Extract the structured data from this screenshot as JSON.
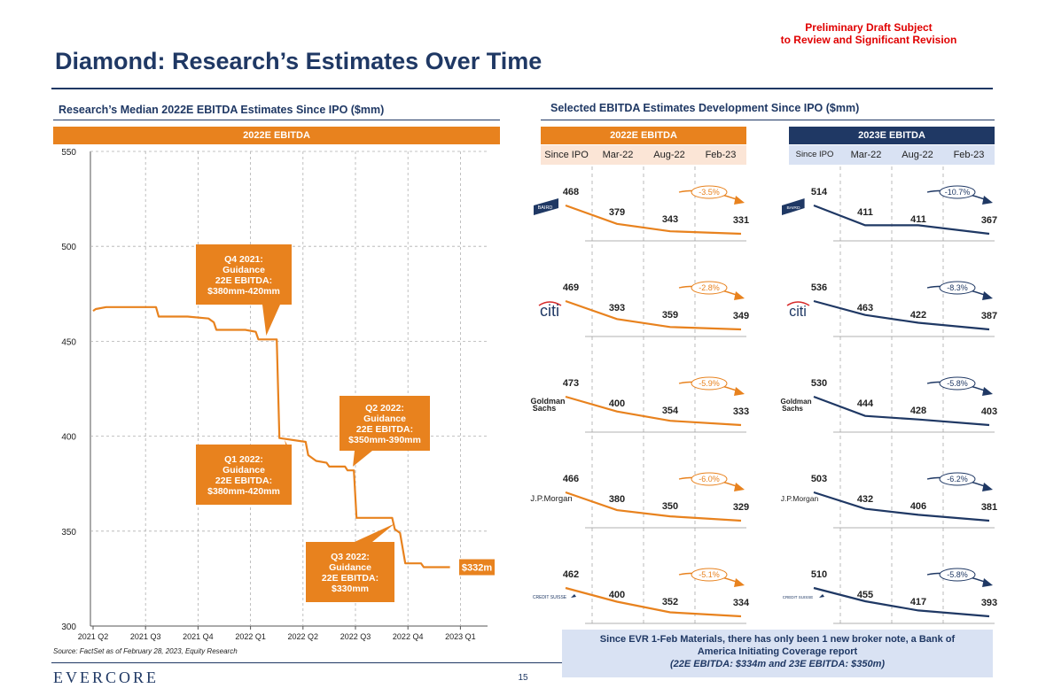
{
  "header": {
    "draft_line1": "Preliminary Draft Subject",
    "draft_line2": "to Review and Significant Revision",
    "title": "Diamond: Research’s Estimates Over Time"
  },
  "left_section": {
    "title": "Research’s Median 2022E EBITDA Estimates Since IPO ($mm)",
    "band": "2022E EBITDA"
  },
  "right_section": {
    "title": "Selected EBITDA Estimates Development Since IPO ($mm)",
    "band_2022": "2022E EBITDA",
    "band_2023": "2023E EBITDA",
    "columns_2022": [
      "Since IPO",
      "Mar-22",
      "Aug-22",
      "Feb-23"
    ],
    "columns_2023": [
      "Since IPO",
      "Mar-22",
      "Aug-22",
      "Feb-23"
    ]
  },
  "colors": {
    "orange": "#e8821e",
    "navy": "#1f3864",
    "light_orange": "#fbe5d6",
    "light_blue": "#d9e2f3"
  },
  "chart_data": [
    {
      "type": "line",
      "title": "2022E EBITDA",
      "x_ticks": [
        "2021 Q2",
        "2021 Q3",
        "2021 Q4",
        "2022 Q1",
        "2022 Q2",
        "2022 Q3",
        "2022 Q4",
        "2023 Q1"
      ],
      "ylim": [
        300,
        550
      ],
      "y_ticks": [
        "300",
        "350",
        "400",
        "450",
        "500",
        "550"
      ],
      "grid": true,
      "series": [
        {
          "name": "Median 2022E EBITDA",
          "points": [
            [
              0,
              466
            ],
            [
              0.05,
              467
            ],
            [
              0.25,
              468
            ],
            [
              1.2,
              468
            ],
            [
              1.25,
              463
            ],
            [
              1.8,
              463
            ],
            [
              2.2,
              462
            ],
            [
              2.3,
              460
            ],
            [
              2.35,
              456
            ],
            [
              2.9,
              456
            ],
            [
              3.1,
              455
            ],
            [
              3.15,
              451
            ],
            [
              3.5,
              451
            ],
            [
              3.55,
              399
            ],
            [
              4.05,
              397
            ],
            [
              4.1,
              390
            ],
            [
              4.25,
              387
            ],
            [
              4.45,
              386
            ],
            [
              4.5,
              384
            ],
            [
              4.8,
              384
            ],
            [
              4.85,
              382
            ],
            [
              4.97,
              382
            ],
            [
              5.02,
              357
            ],
            [
              5.7,
              357
            ],
            [
              5.75,
              351
            ],
            [
              5.85,
              349
            ],
            [
              5.95,
              333
            ],
            [
              6.25,
              333
            ],
            [
              6.3,
              331
            ],
            [
              6.8,
              331
            ]
          ]
        }
      ],
      "end_label": "$332m",
      "annotations": [
        {
          "id": "q4-2021",
          "lines": [
            "Q4 2021:",
            "Guidance",
            "22E EBITDA:",
            "$380mm-420mm"
          ]
        },
        {
          "id": "q1-2022",
          "lines": [
            "Q1 2022:",
            "Guidance",
            "22E EBITDA:",
            "$380mm-420mm"
          ]
        },
        {
          "id": "q2-2022",
          "lines": [
            "Q2 2022:",
            "Guidance",
            "22E EBITDA:",
            "$350mm-390mm"
          ]
        },
        {
          "id": "q3-2022",
          "lines": [
            "Q3 2022:",
            "Guidance",
            "22E EBITDA:",
            "$330mm"
          ]
        }
      ]
    },
    {
      "type": "line",
      "title": "Selected EBITDA Estimates Development Since IPO",
      "categories": [
        "Since IPO",
        "Mar-22",
        "Aug-22",
        "Feb-23"
      ],
      "brokers": [
        {
          "name": "BAIRD",
          "values_2022": [
            468,
            379,
            343,
            331
          ],
          "change_2022": "-3.5%",
          "values_2023": [
            514,
            411,
            411,
            367
          ],
          "change_2023": "-10.7%"
        },
        {
          "name": "citi",
          "values_2022": [
            469,
            393,
            359,
            349
          ],
          "change_2022": "-2.8%",
          "values_2023": [
            536,
            463,
            422,
            387
          ],
          "change_2023": "-8.3%"
        },
        {
          "name": "Goldman Sachs",
          "values_2022": [
            473,
            400,
            354,
            333
          ],
          "change_2022": "-5.9%",
          "values_2023": [
            530,
            444,
            428,
            403
          ],
          "change_2023": "-5.8%"
        },
        {
          "name": "J.P.Morgan",
          "values_2022": [
            466,
            380,
            350,
            329
          ],
          "change_2022": "-6.0%",
          "values_2023": [
            503,
            432,
            406,
            381
          ],
          "change_2023": "-6.2%"
        },
        {
          "name": "CREDIT SUISSE",
          "values_2022": [
            462,
            400,
            352,
            334
          ],
          "change_2022": "-5.1%",
          "values_2023": [
            510,
            455,
            417,
            393
          ],
          "change_2023": "-5.8%"
        }
      ]
    }
  ],
  "footer": {
    "source": "Source: FactSet as of February 28, 2023, Equity Research",
    "logo": "EVERCORE",
    "page": "15",
    "note_line1": "Since EVR 1-Feb Materials, there has only been 1 new broker note, a Bank of",
    "note_line2": "America Initiating Coverage report",
    "note_line3": "(22E EBITDA: $334m and 23E EBITDA: $350m)"
  }
}
